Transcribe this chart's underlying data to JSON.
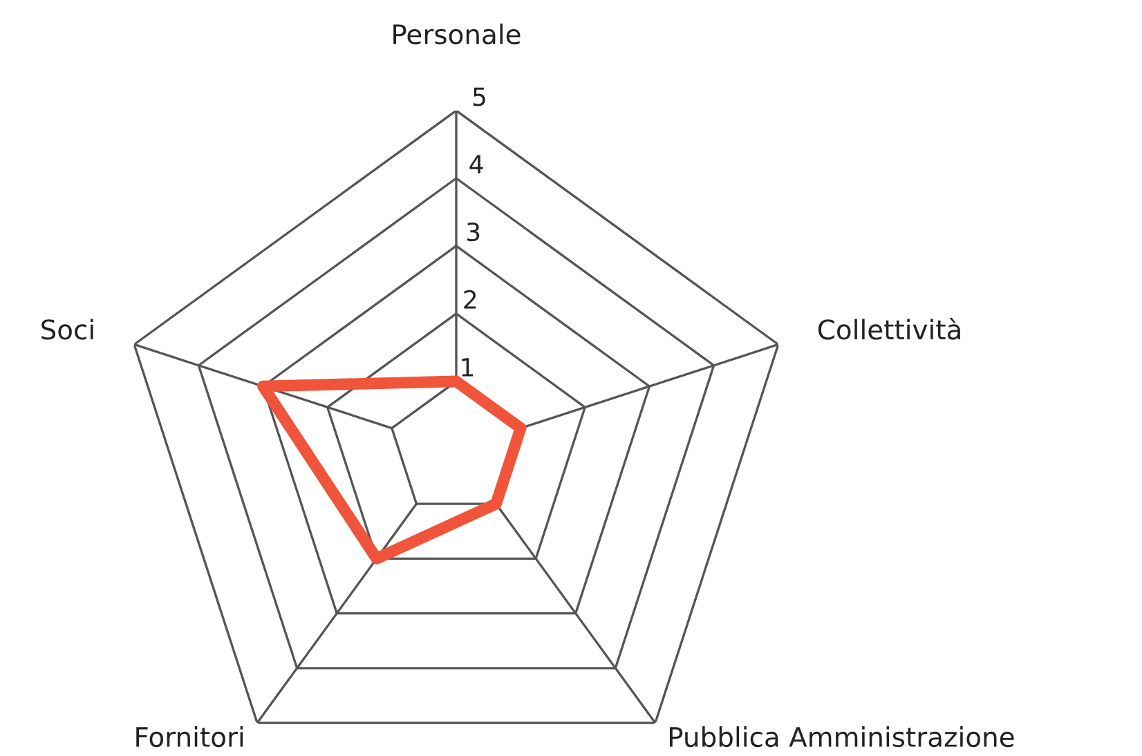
{
  "chart_data": {
    "type": "radar",
    "categories": [
      "Personale",
      "Collettività",
      "Pubblica Amministrazione",
      "Fornitori",
      "Soci"
    ],
    "series": [
      {
        "color": "#f0543a",
        "values": [
          1,
          1,
          1,
          2,
          3
        ]
      }
    ],
    "ylim": [
      0,
      5
    ],
    "yticks": [
      1,
      2,
      3,
      4,
      5
    ],
    "grid": true
  }
}
